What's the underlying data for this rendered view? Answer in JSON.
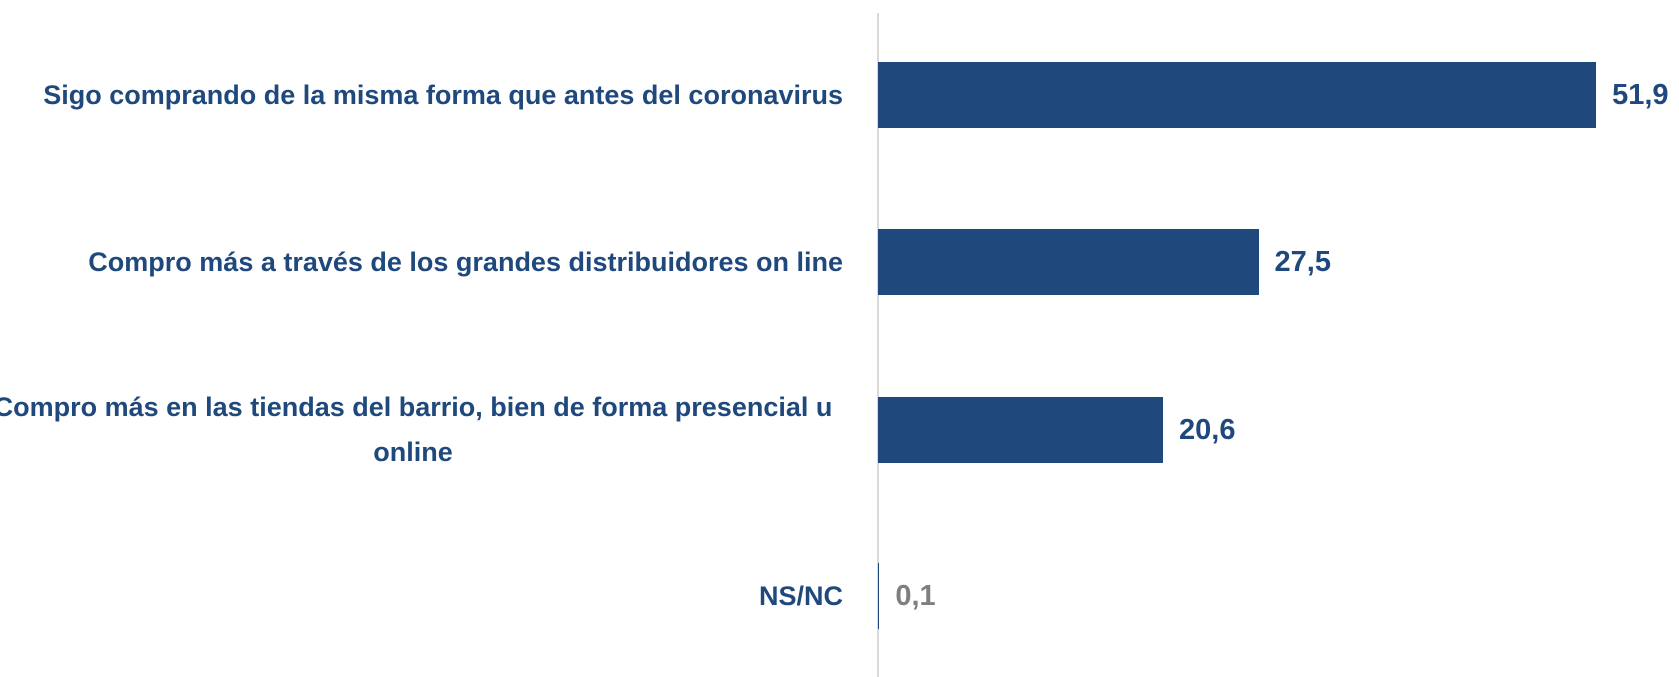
{
  "chart_data": {
    "type": "bar",
    "orientation": "horizontal",
    "categories": [
      "Sigo comprando de la misma forma que antes del coronavirus",
      "Compro más a través de los grandes distribuidores on line",
      "Compro más en las tiendas del barrio, bien de forma presencial u online",
      "NS/NC"
    ],
    "values": [
      51.9,
      27.5,
      20.6,
      0.1
    ],
    "value_labels": [
      "51,9",
      "27,5",
      "20,6",
      "0,1"
    ],
    "colors": [
      "#1f497d",
      "#1f497d",
      "#1f497d",
      "#1f497d"
    ],
    "value_label_colors": [
      "#1f497d",
      "#1f497d",
      "#1f497d",
      "#7f7f7f"
    ],
    "xlim": [
      0,
      55
    ]
  }
}
